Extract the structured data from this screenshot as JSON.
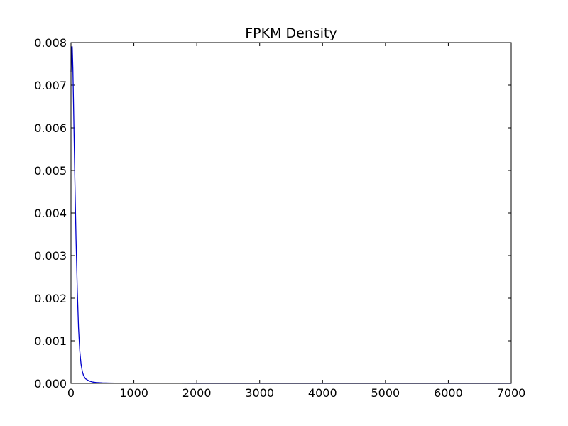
{
  "chart_data": {
    "type": "line",
    "title": "FPKM Density",
    "xlabel": "",
    "ylabel": "",
    "xlim": [
      0,
      7000
    ],
    "ylim": [
      0,
      0.008
    ],
    "x_ticks": [
      0,
      1000,
      2000,
      3000,
      4000,
      5000,
      6000,
      7000
    ],
    "x_tick_labels": [
      "0",
      "1000",
      "2000",
      "3000",
      "4000",
      "5000",
      "6000",
      "7000"
    ],
    "y_ticks": [
      0,
      0.001,
      0.002,
      0.003,
      0.004,
      0.005,
      0.006,
      0.007,
      0.008
    ],
    "y_tick_labels": [
      "0.000",
      "0.001",
      "0.002",
      "0.003",
      "0.004",
      "0.005",
      "0.006",
      "0.007",
      "0.008"
    ],
    "grid": false,
    "legend": "none",
    "series": [
      {
        "color": "#0000cc",
        "x": [
          0,
          10,
          20,
          30,
          40,
          60,
          80,
          100,
          120,
          140,
          160,
          180,
          200,
          230,
          260,
          300,
          350,
          400,
          500,
          600,
          800,
          1000,
          1200,
          1500,
          2000,
          3000,
          4000,
          5000,
          6000,
          7000
        ],
        "y": [
          0.0073,
          0.0079,
          0.0079,
          0.0074,
          0.0066,
          0.0049,
          0.0034,
          0.0022,
          0.0013,
          0.00075,
          0.00045,
          0.00028,
          0.00018,
          0.00011,
          8e-05,
          5e-05,
          3e-05,
          2e-05,
          1.2e-05,
          8e-06,
          4e-06,
          5e-06,
          3e-06,
          2e-06,
          1e-06,
          5e-07,
          2e-07,
          1e-07,
          5e-08,
          0.0
        ]
      }
    ]
  }
}
